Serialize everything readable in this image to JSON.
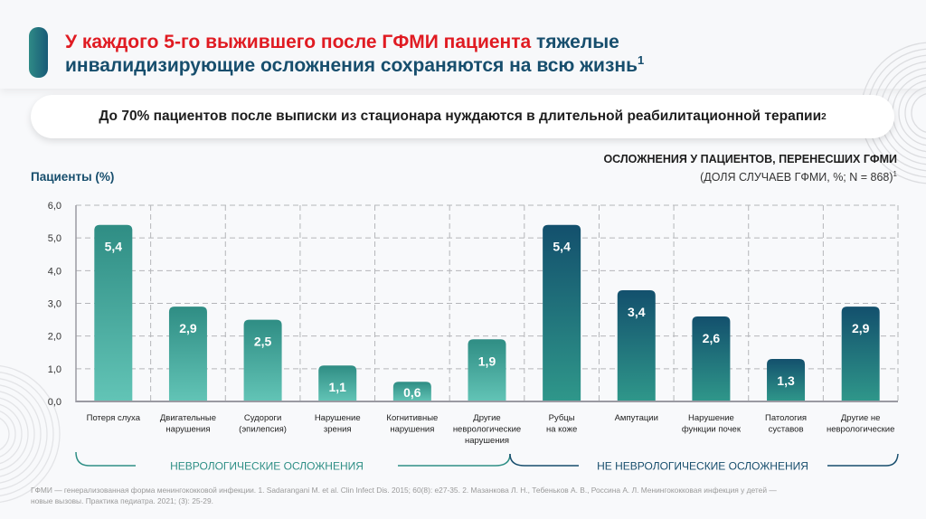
{
  "header": {
    "title_red_1": "У каждого 5-го выжившего после ГФМИ пациента",
    "title_blue_1": " тяжелые",
    "title_blue_2": "инвалидизирующие осложнения сохраняются на всю жизнь",
    "title_sup": "1"
  },
  "callout": {
    "text": "До 70% пациентов после выписки из стационара нуждаются в длительной реабилитационной терапии",
    "sup": "2"
  },
  "chart_data": {
    "type": "bar",
    "title": "ОСЛОЖНЕНИЯ У ПАЦИЕНТОВ, ПЕРЕНЕСШИХ ГФМИ",
    "subtitle": "(ДОЛЯ СЛУЧАЕВ ГФМИ, %; N = 868)",
    "subtitle_sup": "1",
    "xlabel": "",
    "ylabel": "Пациенты (%)",
    "ylim": [
      0,
      6
    ],
    "yticks": [
      "0,0",
      "1,0",
      "2,0",
      "3,0",
      "4,0",
      "5,0",
      "6,0"
    ],
    "grid": true,
    "categories": [
      [
        "Потеря слуха"
      ],
      [
        "Двигательные",
        "нарушения"
      ],
      [
        "Судороги",
        "(эпилепсия)"
      ],
      [
        "Нарушение",
        "зрения"
      ],
      [
        "Когнитивные",
        "нарушения"
      ],
      [
        "Другие",
        "неврологические",
        "нарушения"
      ],
      [
        "Рубцы",
        "на коже"
      ],
      [
        "Ампутации"
      ],
      [
        "Нарушение",
        "функции почек"
      ],
      [
        "Патология",
        "суставов"
      ],
      [
        "Другие не",
        "неврологические"
      ]
    ],
    "values": [
      5.4,
      2.9,
      2.5,
      1.1,
      0.6,
      1.9,
      5.4,
      3.4,
      2.6,
      1.3,
      2.9
    ],
    "labels": [
      "5,4",
      "2,9",
      "2,5",
      "1,1",
      "0,6",
      "1,9",
      "5,4",
      "3,4",
      "2,6",
      "1,3",
      "2,9"
    ],
    "groups": [
      {
        "name": "НЕВРОЛОГИЧЕСКИЕ ОСЛОЖНЕНИЯ",
        "start": 0,
        "end": 5,
        "color": "#2f8f86"
      },
      {
        "name": "НЕ НЕВРОЛОГИЧЕСКИЕ ОСЛОЖНЕНИЯ",
        "start": 6,
        "end": 10,
        "color": "#174e6d"
      }
    ],
    "colors": {
      "neuro_top": "#2f8d84",
      "neuro_bottom": "#62c4b6",
      "nonneuro_top": "#13506d",
      "nonneuro_bottom": "#2f978a"
    }
  },
  "footnote": {
    "line1": "ГФМИ — генерализованная форма менингококковой инфекции. 1. Sadarangani M. et al. Clin Infect Dis. 2015; 60(8): e27-35. 2. Мазанкова Л. Н., Тебеньков А. В., Россина А. Л. Менингококковая инфекция у детей —",
    "line2": "новые вызовы. Практика педиатра. 2021; (3): 25-29."
  }
}
